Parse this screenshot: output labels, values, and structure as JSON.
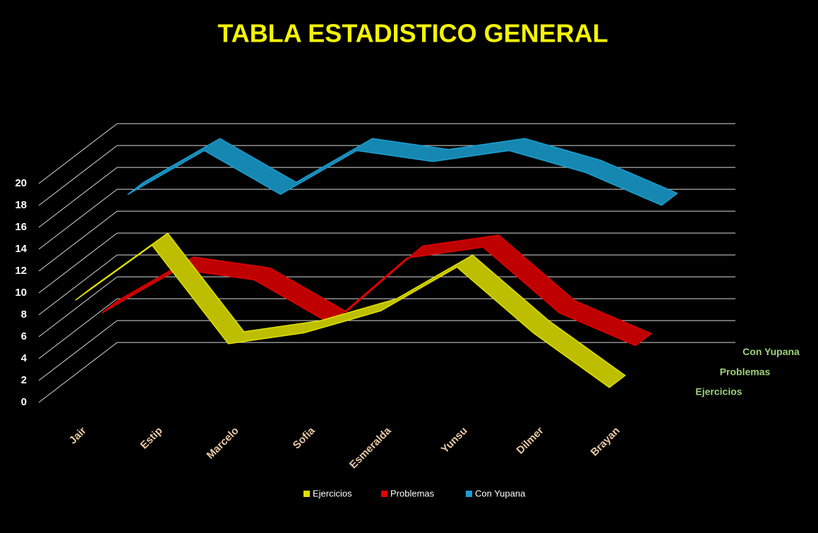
{
  "chart_data": {
    "type": "line3d",
    "title": "TABLA ESTADISTICO GENERAL",
    "categories": [
      "Jair",
      "Estip",
      "Marcelo",
      "Sofia",
      "Esmeralda",
      "Yunsu",
      "Dilmer",
      "Brayan"
    ],
    "series": [
      {
        "name": "Ejercicios",
        "color": "#e0e000",
        "values": [
          9,
          14,
          5,
          6,
          8,
          12,
          6,
          1
        ]
      },
      {
        "name": "Problemas",
        "color": "#e00000",
        "values": [
          6,
          10,
          9,
          5,
          11,
          12,
          6,
          3
        ]
      },
      {
        "name": "Con Yupana",
        "color": "#1a9fd0",
        "values": [
          15,
          19,
          15,
          19,
          18,
          19,
          17,
          14
        ]
      }
    ],
    "ylim": [
      0,
      20
    ],
    "yticks": [
      0,
      2,
      4,
      6,
      8,
      10,
      12,
      14,
      16,
      18,
      20
    ],
    "grid": true
  }
}
